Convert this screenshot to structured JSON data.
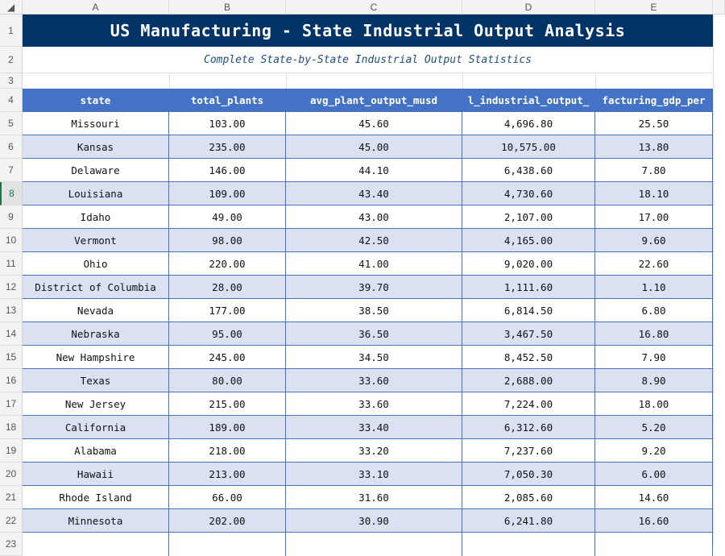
{
  "columns": [
    "A",
    "B",
    "C",
    "D",
    "E"
  ],
  "title": "US Manufacturing - State Industrial Output Analysis",
  "subtitle": "Complete State-by-State Industrial Output Statistics",
  "headers": [
    "state",
    "total_plants",
    "avg_plant_output_musd",
    "l_industrial_output_",
    "facturing_gdp_per"
  ],
  "selected_row": 8,
  "rows": [
    [
      "Missouri",
      "103.00",
      "45.60",
      "4,696.80",
      "25.50"
    ],
    [
      "Kansas",
      "235.00",
      "45.00",
      "10,575.00",
      "13.80"
    ],
    [
      "Delaware",
      "146.00",
      "44.10",
      "6,438.60",
      "7.80"
    ],
    [
      "Louisiana",
      "109.00",
      "43.40",
      "4,730.60",
      "18.10"
    ],
    [
      "Idaho",
      "49.00",
      "43.00",
      "2,107.00",
      "17.00"
    ],
    [
      "Vermont",
      "98.00",
      "42.50",
      "4,165.00",
      "9.60"
    ],
    [
      "Ohio",
      "220.00",
      "41.00",
      "9,020.00",
      "22.60"
    ],
    [
      "District of Columbia",
      "28.00",
      "39.70",
      "1,111.60",
      "1.10"
    ],
    [
      "Nevada",
      "177.00",
      "38.50",
      "6,814.50",
      "6.80"
    ],
    [
      "Nebraska",
      "95.00",
      "36.50",
      "3,467.50",
      "16.80"
    ],
    [
      "New Hampshire",
      "245.00",
      "34.50",
      "8,452.50",
      "7.90"
    ],
    [
      "Texas",
      "80.00",
      "33.60",
      "2,688.00",
      "8.90"
    ],
    [
      "New Jersey",
      "215.00",
      "33.60",
      "7,224.00",
      "18.00"
    ],
    [
      "California",
      "189.00",
      "33.40",
      "6,312.60",
      "5.20"
    ],
    [
      "Alabama",
      "218.00",
      "33.20",
      "7,237.60",
      "9.20"
    ],
    [
      "Hawaii",
      "213.00",
      "33.10",
      "7,050.30",
      "6.00"
    ],
    [
      "Rhode Island",
      "66.00",
      "31.60",
      "2,085.60",
      "14.60"
    ],
    [
      "Minnesota",
      "202.00",
      "30.90",
      "6,241.80",
      "16.60"
    ]
  ],
  "colors": {
    "title_bg": "#003366",
    "header_bg": "#4472c4",
    "alt_row": "#d9e1f2"
  }
}
